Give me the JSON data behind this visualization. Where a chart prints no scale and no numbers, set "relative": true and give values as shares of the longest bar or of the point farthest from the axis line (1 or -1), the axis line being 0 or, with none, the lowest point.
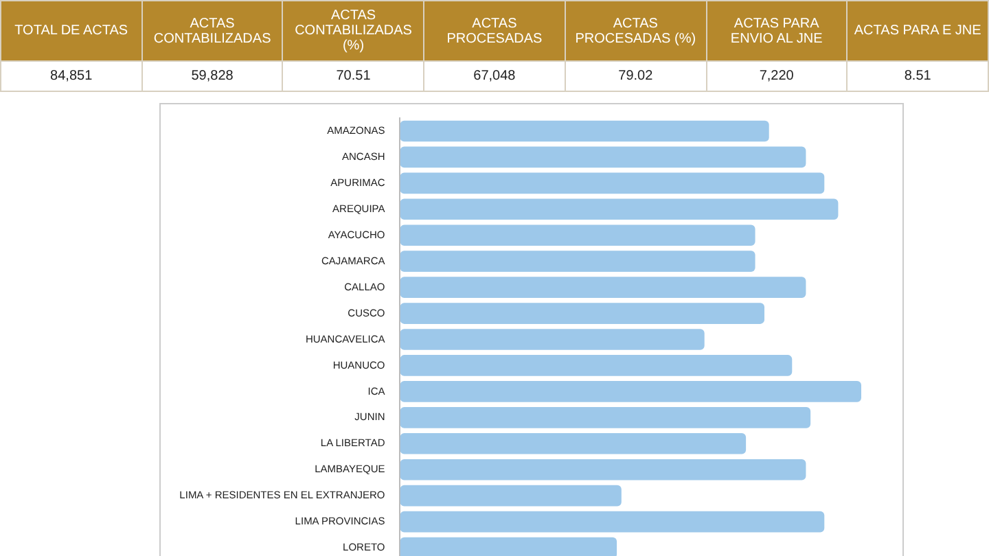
{
  "chart_data": [
    {
      "type": "other",
      "annotations": [
        "TOTAL DE ACTAS",
        "ACTAS CONTABILIZADAS",
        "ACTAS CONTABILIZADAS (%)",
        "ACTAS PROCESADAS",
        "ACTAS PROCESADAS (%)",
        "ACTAS PARA ENVIO AL JNE",
        "ACTAS PARA E JNE",
        "84,851",
        "59,828",
        "70.51",
        "67,048",
        "79.02",
        "7,220",
        "8.51"
      ]
    },
    {
      "type": "bar",
      "orientation": "horizontal",
      "relative": true,
      "color": "#9dc8ea",
      "categories": [
        "AMAZONAS",
        "ANCASH",
        "APURIMAC",
        "AREQUIPA",
        "AYACUCHO",
        "CAJAMARCA",
        "CALLAO",
        "CUSCO",
        "HUANCAVELICA",
        "HUANUCO",
        "ICA",
        "JUNIN",
        "LA LIBERTAD",
        "LAMBAYEQUE",
        "LIMA + RESIDENTES EN EL EXTRANJERO",
        "LIMA PROVINCIAS",
        "LORETO"
      ],
      "values": [
        0.8,
        0.88,
        0.92,
        0.95,
        0.77,
        0.77,
        0.88,
        0.79,
        0.66,
        0.85,
        1,
        0.89,
        0.75,
        0.88,
        0.48,
        0.92,
        0.47
      ]
    }
  ]
}
